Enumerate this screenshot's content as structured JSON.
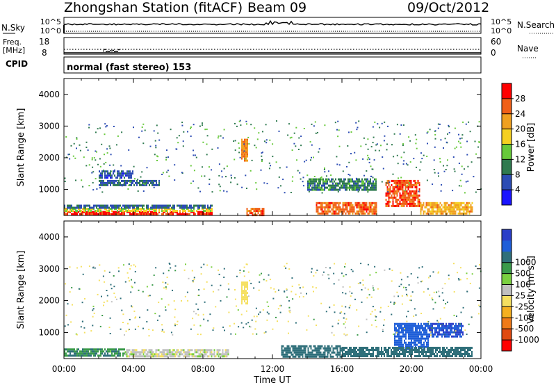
{
  "header": {
    "station": "Zhongshan Station (fitACF)",
    "beam": "Beam 09",
    "date": "09/Oct/2012"
  },
  "noise_panel": {
    "left_label": "N.Sky",
    "left_ticks": [
      "10^5",
      "10^0"
    ],
    "right_ticks": [
      "10^5",
      "10^0"
    ],
    "right_label": "N.Search"
  },
  "freq_panel": {
    "left_label": "Freq.",
    "left_unit": "[MHz]",
    "left_ticks": [
      "18",
      "8"
    ],
    "right_ticks": [
      "60",
      "0"
    ],
    "right_label": "Nave"
  },
  "cpid_panel": {
    "label": "CPID",
    "text": "normal (fast stereo) 153"
  },
  "axes": {
    "ylabel": "Slant Range [km]",
    "yticks": [
      1000,
      2000,
      3000,
      4000
    ],
    "ylim": [
      180,
      4500
    ],
    "xlabel": "Time UT",
    "xticks": [
      "00:00",
      "04:00",
      "08:00",
      "12:00",
      "16:00",
      "20:00",
      "00:00"
    ],
    "xlim_hours": [
      0,
      24
    ]
  },
  "power_colorbar": {
    "label": "Power [dB]",
    "ticks": [
      "4",
      "8",
      "12",
      "16",
      "20",
      "24",
      "28"
    ],
    "colors": [
      "#1a14ff",
      "#2c4cb4",
      "#2f7a4f",
      "#67c93a",
      "#f5d020",
      "#f0a020",
      "#f06018",
      "#ff0000"
    ]
  },
  "velocity_colorbar": {
    "label": "Velocity [m s",
    "label_sup": "-1",
    "label_close": "]",
    "ticks": [
      "1000",
      "500",
      "100",
      "25",
      "-25",
      "-100",
      "-500",
      "-1000"
    ],
    "colors": [
      "#2a3ec8",
      "#1e5ed8",
      "#2f6f7a",
      "#3a9a4a",
      "#7ad040",
      "#c0c0c0",
      "#f5e060",
      "#f5b020",
      "#f07a18",
      "#e04a10",
      "#ff0000"
    ]
  },
  "chart_data": [
    {
      "type": "heatmap",
      "title": "Power",
      "xlabel": "Time UT",
      "ylabel": "Slant Range [km]",
      "x_range_hours": [
        0,
        24
      ],
      "y_range_km": [
        180,
        4500
      ],
      "color_value_range_db": [
        0,
        30
      ],
      "regions": [
        {
          "t0": 0.0,
          "t1": 8.5,
          "r0": 200,
          "r1": 320,
          "value": 27
        },
        {
          "t0": 0.0,
          "t1": 8.5,
          "r0": 320,
          "r1": 420,
          "value": 16
        },
        {
          "t0": 0.0,
          "t1": 8.5,
          "r0": 420,
          "r1": 520,
          "value": 7
        },
        {
          "t0": 10.5,
          "t1": 11.5,
          "r0": 220,
          "r1": 420,
          "value": 24
        },
        {
          "t0": 10.2,
          "t1": 10.6,
          "r0": 1900,
          "r1": 2600,
          "value": 22
        },
        {
          "t0": 14.5,
          "t1": 18.0,
          "r0": 250,
          "r1": 600,
          "value": 24
        },
        {
          "t0": 18.5,
          "t1": 20.5,
          "r0": 450,
          "r1": 1300,
          "value": 25
        },
        {
          "t0": 20.5,
          "t1": 23.5,
          "r0": 250,
          "r1": 600,
          "value": 20
        },
        {
          "t0": 2.0,
          "t1": 4.0,
          "r0": 1400,
          "r1": 1600,
          "value": 6
        },
        {
          "t0": 2.0,
          "t1": 5.5,
          "r0": 1150,
          "r1": 1300,
          "value": 7
        },
        {
          "t0": 14.0,
          "t1": 18.0,
          "r0": 1000,
          "r1": 1350,
          "value": 9
        }
      ]
    },
    {
      "type": "heatmap",
      "title": "Velocity",
      "xlabel": "Time UT",
      "ylabel": "Slant Range [km]",
      "x_range_hours": [
        0,
        24
      ],
      "y_range_km": [
        180,
        4500
      ],
      "regions": [
        {
          "t0": 0.0,
          "t1": 3.5,
          "r0": 250,
          "r1": 500,
          "value": 80
        },
        {
          "t0": 3.5,
          "t1": 9.5,
          "r0": 250,
          "r1": 480,
          "value": -60
        },
        {
          "t0": 10.2,
          "t1": 10.6,
          "r0": 1900,
          "r1": 2600,
          "value": -300
        },
        {
          "t0": 12.5,
          "t1": 16.0,
          "r0": 250,
          "r1": 600,
          "value": 300
        },
        {
          "t0": 19.0,
          "t1": 21.0,
          "r0": 450,
          "r1": 1300,
          "value": 700
        },
        {
          "t0": 21.0,
          "t1": 23.0,
          "r0": 900,
          "r1": 1300,
          "value": 1000
        },
        {
          "t0": 16.0,
          "t1": 23.5,
          "r0": 250,
          "r1": 550,
          "value": 200
        }
      ]
    }
  ]
}
